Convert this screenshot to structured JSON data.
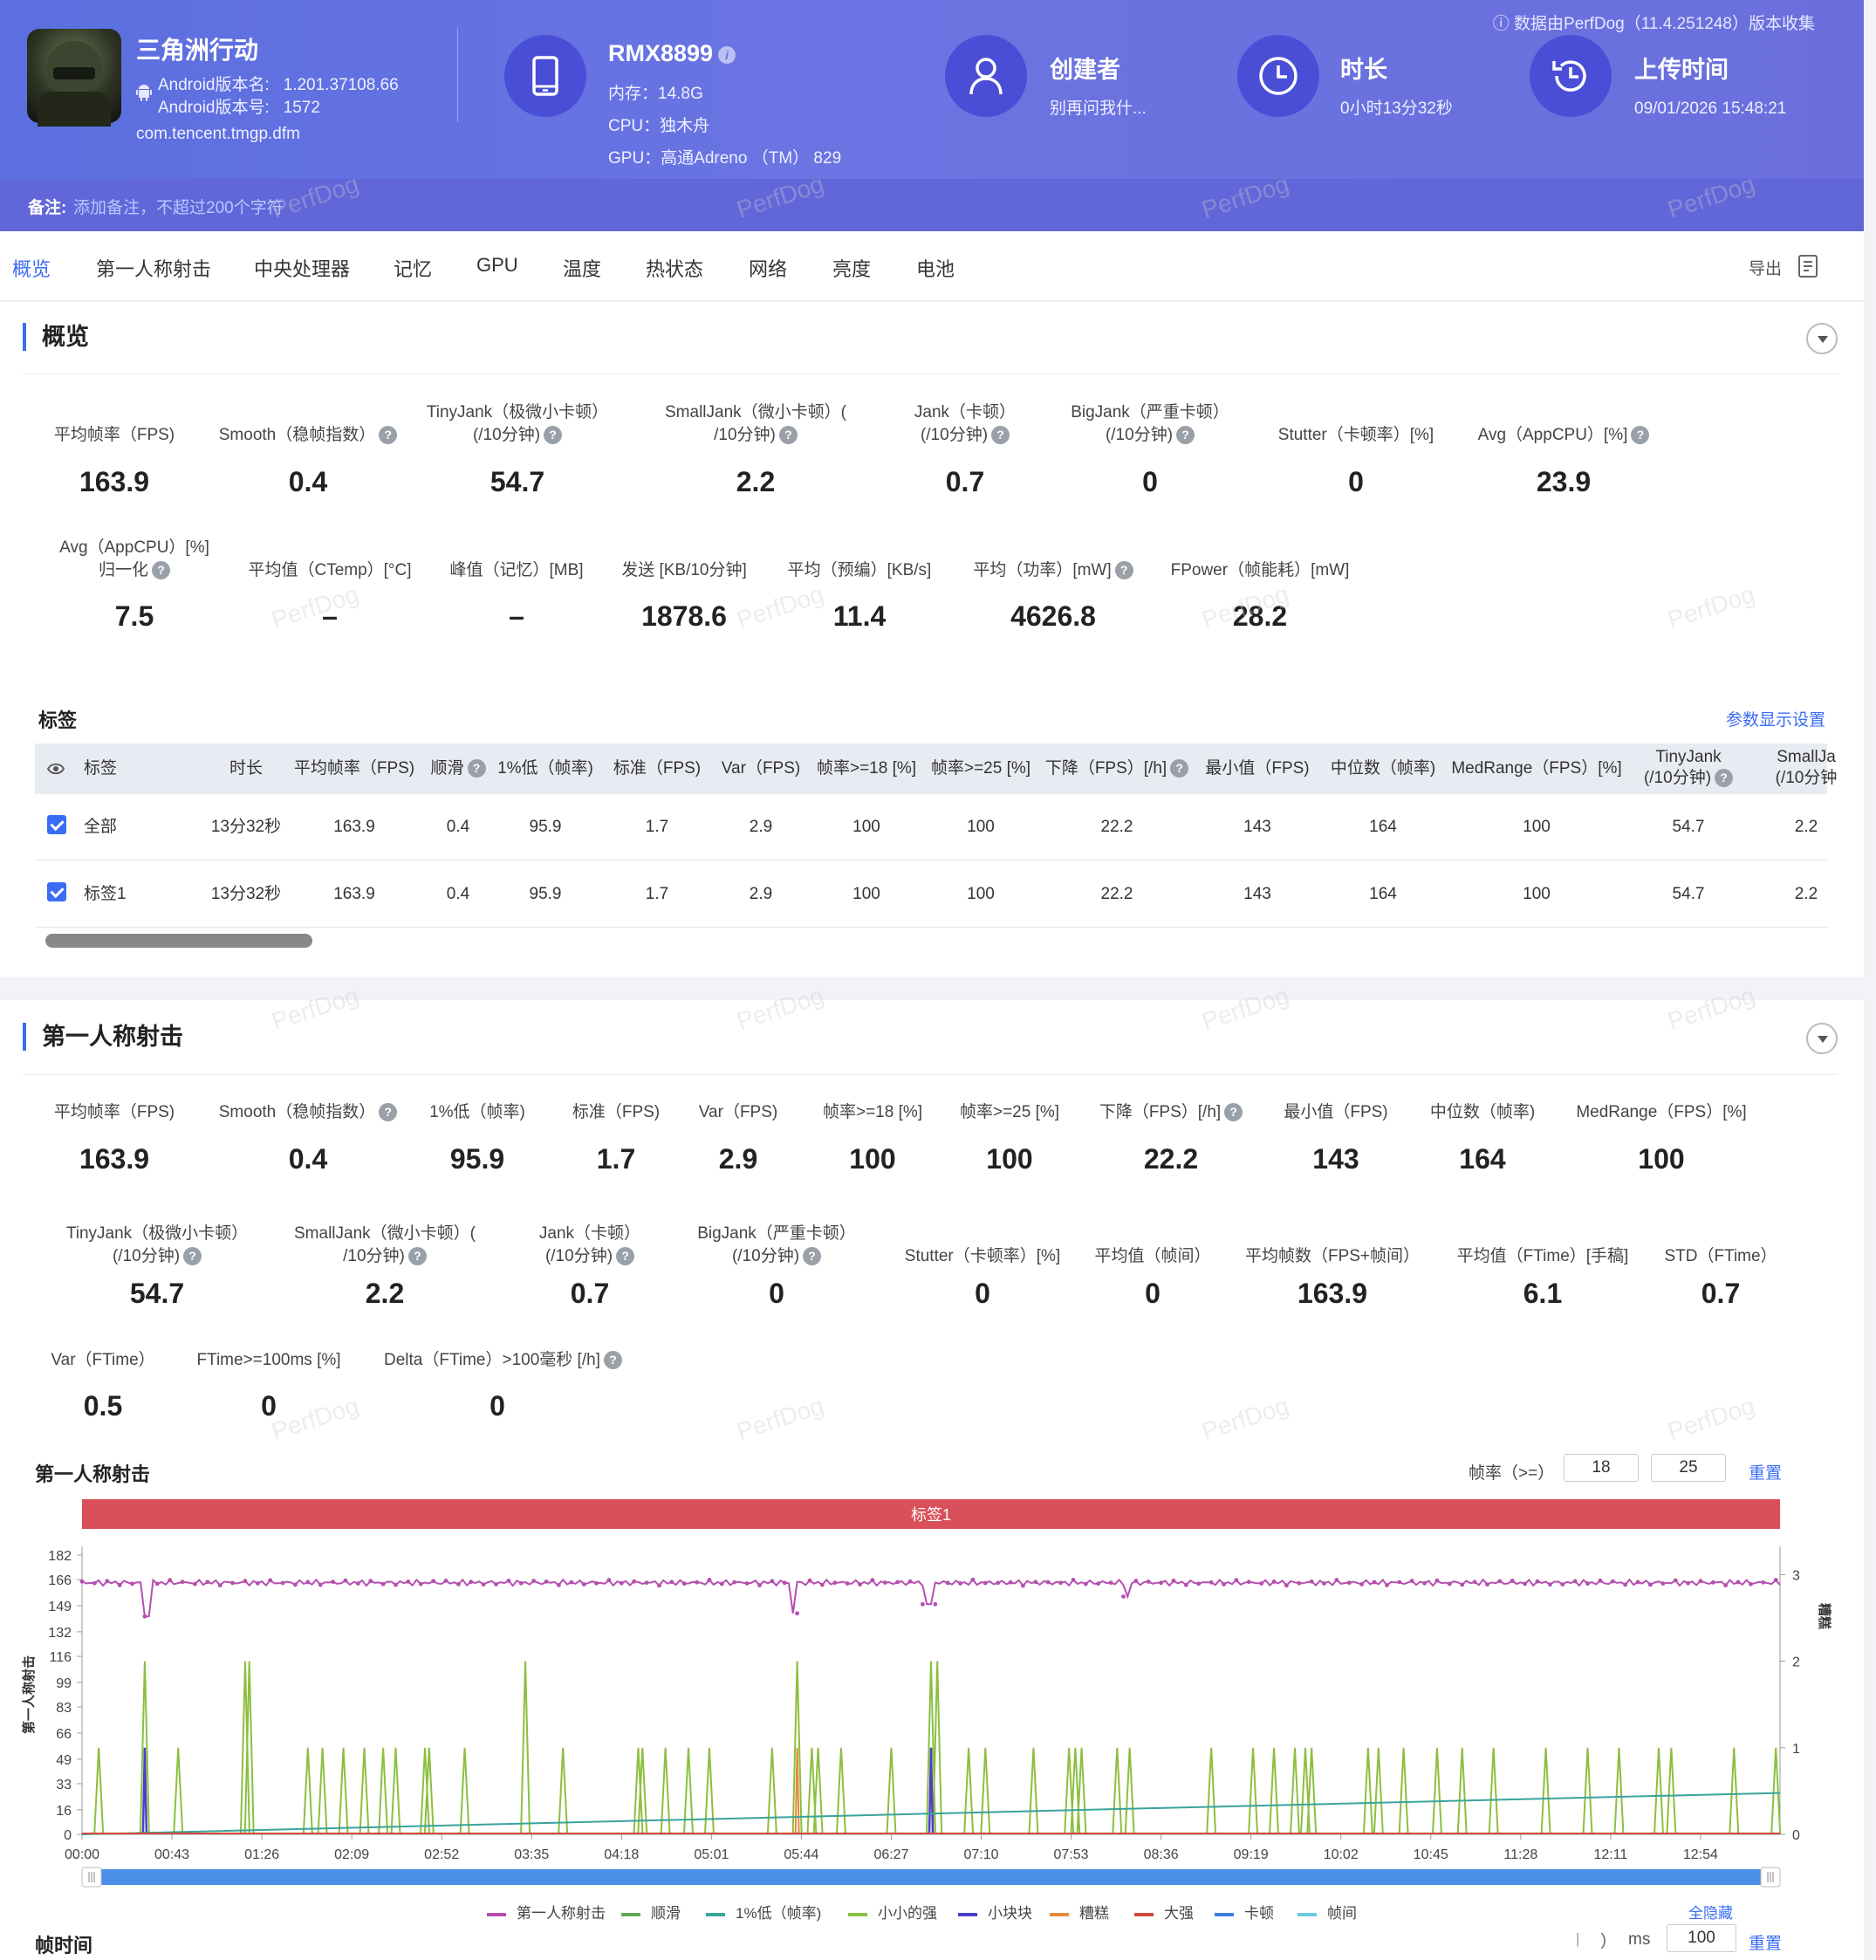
{
  "header": {
    "collect_note": "ⓘ 数据由PerfDog（11.4.251248）版本收集",
    "app": {
      "name": "三角洲行动",
      "version_name_label": "Android版本名:",
      "version_name": "1.201.37108.66",
      "version_code_label": "Android版本号:",
      "version_code": "1572",
      "package": "com.tencent.tmgp.dfm"
    },
    "device": {
      "model": "RMX8899",
      "memory": "内存：14.8G",
      "cpu": "CPU：独木舟",
      "gpu": "GPU：高通Adreno （TM） 829"
    },
    "creator": {
      "title": "创建者",
      "value": "别再问我什..."
    },
    "duration": {
      "title": "时长",
      "value": "0小时13分32秒"
    },
    "upload": {
      "title": "上传时间",
      "value": "09/01/2026 15:48:21"
    },
    "note_label": "备注:",
    "note_placeholder": "添加备注，不超过200个字符"
  },
  "tabs": [
    "概览",
    "第一人称射击",
    "中央处理器",
    "记忆",
    "GPU",
    "温度",
    "热状态",
    "网络",
    "亮度",
    "电池"
  ],
  "export_label": "导出",
  "overview": {
    "title": "概览",
    "row1": [
      {
        "label": "平均帧率（FPS)",
        "value": "163.9"
      },
      {
        "label": "Smooth（稳帧指数）",
        "value": "0.4",
        "help": true
      },
      {
        "label": "TinyJank（极微小卡顿）",
        "label2": "(/10分钟)",
        "value": "54.7",
        "help": true
      },
      {
        "label": "SmallJank（微小卡顿）(",
        "label2": "/10分钟)",
        "value": "2.2",
        "help": true
      },
      {
        "label": "Jank（卡顿）",
        "label2": "(/10分钟)",
        "value": "0.7",
        "help": true
      },
      {
        "label": "BigJank（严重卡顿）",
        "label2": "(/10分钟)",
        "value": "0",
        "help": true
      },
      {
        "label": "Stutter（卡顿率）[%]",
        "value": "0"
      },
      {
        "label": "Avg（AppCPU）[%]",
        "value": "23.9",
        "help": true
      }
    ],
    "row2": [
      {
        "label": "Avg（AppCPU）[%]",
        "label2": "归一化",
        "value": "7.5",
        "help": true
      },
      {
        "label": "平均值（CTemp）[°C]",
        "value": "–"
      },
      {
        "label": "峰值（记忆）[MB]",
        "value": "–"
      },
      {
        "label": "发送 [KB/10分钟]",
        "value": "1878.6"
      },
      {
        "label": "平均（预编）[KB/s]",
        "value": "11.4"
      },
      {
        "label": "平均（功率）[mW]",
        "value": "4626.8",
        "help": true
      },
      {
        "label": "FPower（帧能耗）[mW]",
        "value": "28.2"
      }
    ],
    "tags_title": "标签",
    "tags_settings": "参数显示设置",
    "table": {
      "headers": [
        "标签",
        "时长",
        "平均帧率（FPS)",
        "顺滑",
        "1%低（帧率)",
        "标准（FPS)",
        "Var（FPS)",
        "帧率>=18 [%]",
        "帧率>=25 [%]",
        "下降（FPS）[/h]",
        "最小值（FPS)",
        "中位数（帧率)",
        "MedRange（FPS）[%]",
        "TinyJank",
        "SmallJa"
      ],
      "headers2": {
        "tinyjank": "(/10分钟)",
        "smalljank": "(/10分钟"
      },
      "rows": [
        {
          "name": "全部",
          "cells": [
            "13分32秒",
            "163.9",
            "0.4",
            "95.9",
            "1.7",
            "2.9",
            "100",
            "100",
            "22.2",
            "143",
            "164",
            "100",
            "54.7",
            "2.2"
          ]
        },
        {
          "name": "标签1",
          "cells": [
            "13分32秒",
            "163.9",
            "0.4",
            "95.9",
            "1.7",
            "2.9",
            "100",
            "100",
            "22.2",
            "143",
            "164",
            "100",
            "54.7",
            "2.2"
          ]
        }
      ]
    }
  },
  "fps_section": {
    "title": "第一人称射击",
    "row1": [
      {
        "label": "平均帧率（FPS)",
        "value": "163.9"
      },
      {
        "label": "Smooth（稳帧指数）",
        "value": "0.4",
        "help": true
      },
      {
        "label": "1%低（帧率)",
        "value": "95.9"
      },
      {
        "label": "标准（FPS)",
        "value": "1.7"
      },
      {
        "label": "Var（FPS)",
        "value": "2.9"
      },
      {
        "label": "帧率>=18 [%]",
        "value": "100"
      },
      {
        "label": "帧率>=25 [%]",
        "value": "100"
      },
      {
        "label": "下降（FPS）[/h]",
        "value": "22.2",
        "help": true
      },
      {
        "label": "最小值（FPS)",
        "value": "143"
      },
      {
        "label": "中位数（帧率)",
        "value": "164"
      },
      {
        "label": "MedRange（FPS）[%]",
        "value": "100"
      }
    ],
    "row2": [
      {
        "label": "TinyJank（极微小卡顿）",
        "label2": "(/10分钟)",
        "value": "54.7",
        "help": true
      },
      {
        "label": "SmallJank（微小卡顿）(",
        "label2": "/10分钟)",
        "value": "2.2",
        "help": true
      },
      {
        "label": "Jank（卡顿）",
        "label2": "(/10分钟)",
        "value": "0.7",
        "help": true
      },
      {
        "label": "BigJank（严重卡顿）",
        "label2": "(/10分钟)",
        "value": "0",
        "help": true
      },
      {
        "label": "Stutter（卡顿率）[%]",
        "value": "0"
      },
      {
        "label": "平均值（帧间）",
        "value": "0"
      },
      {
        "label": "平均帧数（FPS+帧间）",
        "value": "163.9"
      },
      {
        "label": "平均值（FTime）[手稿]",
        "value": "6.1"
      },
      {
        "label": "STD（FTime）",
        "value": "0.7"
      }
    ],
    "row3": [
      {
        "label": "Var（FTime）",
        "value": "0.5"
      },
      {
        "label": "FTime>=100ms [%]",
        "value": "0"
      },
      {
        "label": "Delta（FTime）>100毫秒 [/h]",
        "value": "0",
        "help": true
      }
    ],
    "chart_title": "第一人称射击",
    "fps_threshold_label": "帧率（>=）",
    "threshold1": "18",
    "threshold2": "25",
    "reset": "重置",
    "tag_band": "标签1",
    "hide_all": "全隐藏",
    "frametime_title": "帧时间",
    "frametime_unit": "ms",
    "frametime_value": "100",
    "frametime_paren": "）",
    "frametime_reset": "重置"
  },
  "chart_data": {
    "type": "line",
    "ylabel": "第一人称射击",
    "y2label": "糟糕",
    "y_ticks": [
      0,
      16,
      33,
      49,
      66,
      83,
      99,
      116,
      132,
      149,
      166,
      182
    ],
    "y2_ticks": [
      0,
      1,
      2,
      3
    ],
    "x_ticks": [
      "00:00",
      "00:43",
      "01:26",
      "02:09",
      "02:52",
      "03:35",
      "04:18",
      "05:01",
      "05:44",
      "06:27",
      "07:10",
      "07:53",
      "08:36",
      "09:19",
      "10:02",
      "10:45",
      "11:28",
      "12:11",
      "12:54"
    ],
    "xlim_seconds": [
      0,
      812
    ],
    "ylim": [
      0,
      182
    ],
    "y2lim": [
      0,
      3
    ],
    "series": [
      {
        "name": "第一人称射击",
        "color": "#b54fb0",
        "baseline": 164,
        "dips": [
          [
            31,
            142
          ],
          [
            340,
            144
          ],
          [
            405,
            150
          ],
          [
            500,
            155
          ]
        ]
      },
      {
        "name": "顺滑",
        "color": "#5fa84f"
      },
      {
        "name": "1%低（帧率)",
        "color": "#3aa39c",
        "start": 0,
        "end": 27
      },
      {
        "name": "小小的强",
        "color": "#8cbf3f",
        "spike_times": [
          8,
          30,
          46,
          78,
          80,
          108,
          115,
          125,
          135,
          144,
          150,
          164,
          166,
          183,
          212,
          230,
          266,
          268,
          279,
          290,
          300,
          330,
          342,
          349,
          352,
          363,
          387,
          406,
          409,
          424,
          432,
          455,
          472,
          475,
          478,
          495,
          501,
          540,
          560,
          570,
          580,
          585,
          588,
          615,
          620,
          632,
          648,
          660,
          675,
          700,
          720,
          735,
          754,
          760,
          790,
          810
        ],
        "spike_heights": [
          1,
          2,
          1,
          2,
          2,
          1,
          1,
          1,
          1,
          1,
          1,
          1,
          1,
          1,
          2,
          1,
          1,
          1,
          1,
          1,
          1,
          1,
          2,
          1,
          1,
          1,
          1,
          2,
          2,
          1,
          1,
          1,
          1,
          1,
          1,
          1,
          1,
          1,
          1,
          1,
          1,
          1,
          1,
          1,
          1,
          1,
          1,
          1,
          1,
          1,
          1,
          1,
          1,
          1,
          1,
          1
        ]
      },
      {
        "name": "小块块",
        "color": "#4a3fc7",
        "spike_times": [
          30,
          406
        ],
        "spike_heights": [
          1,
          1
        ]
      },
      {
        "name": "糟糕",
        "color": "#e58a3a",
        "spike_times": [
          342
        ],
        "spike_heights": [
          1
        ]
      },
      {
        "name": "大强",
        "color": "#d24a3a"
      },
      {
        "name": "卡顿",
        "color": "#3a7fe0"
      },
      {
        "name": "帧间",
        "color": "#6ac9e0"
      }
    ]
  },
  "colors": {
    "accent": "#3a6cf4",
    "header_bg": "#6b74e2",
    "tag_band": "#d9505a"
  }
}
